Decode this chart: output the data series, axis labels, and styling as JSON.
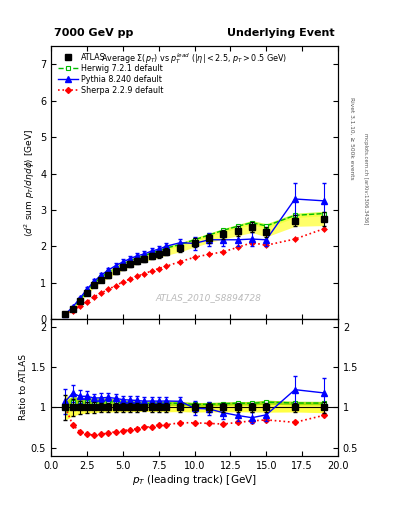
{
  "title_left": "7000 GeV pp",
  "title_right": "Underlying Event",
  "plot_title": "Average $\\Sigma(p_T)$ vs $p_T^{lead}$ ($|\\eta| < 2.5$, $p_T > 0.5$ GeV)",
  "ylabel_main": "$\\langle d^2$ sum $p_T/d\\eta d\\phi\\rangle$ [GeV]",
  "ylabel_ratio": "Ratio to ATLAS",
  "xlabel": "$p_T$ (leading track) [GeV]",
  "watermark": "ATLAS_2010_S8894728",
  "rivet_label": "Rivet 3.1.10, ≥ 500k events",
  "arxiv_label": "mcplots.cern.ch [arXiv:1306.3436]",
  "ylim_main": [
    0,
    7.5
  ],
  "ylim_ratio": [
    0.4,
    2.1
  ],
  "xlim": [
    0,
    20
  ],
  "atlas_x": [
    1.0,
    1.5,
    2.0,
    2.5,
    3.0,
    3.5,
    4.0,
    4.5,
    5.0,
    5.5,
    6.0,
    6.5,
    7.0,
    7.5,
    8.0,
    9.0,
    10.0,
    11.0,
    12.0,
    13.0,
    14.0,
    15.0,
    17.0,
    19.0
  ],
  "atlas_y": [
    0.13,
    0.28,
    0.5,
    0.72,
    0.93,
    1.08,
    1.2,
    1.32,
    1.43,
    1.52,
    1.6,
    1.66,
    1.73,
    1.78,
    1.85,
    1.95,
    2.1,
    2.22,
    2.33,
    2.42,
    2.52,
    2.4,
    2.7,
    2.75
  ],
  "atlas_yerr": [
    0.02,
    0.03,
    0.04,
    0.05,
    0.06,
    0.06,
    0.07,
    0.07,
    0.08,
    0.08,
    0.08,
    0.08,
    0.09,
    0.09,
    0.1,
    0.1,
    0.12,
    0.12,
    0.13,
    0.13,
    0.14,
    0.14,
    0.15,
    0.18
  ],
  "herwig_x": [
    1.0,
    1.5,
    2.0,
    2.5,
    3.0,
    3.5,
    4.0,
    4.5,
    5.0,
    5.5,
    6.0,
    6.5,
    7.0,
    7.5,
    8.0,
    9.0,
    10.0,
    11.0,
    12.0,
    13.0,
    14.0,
    15.0,
    17.0,
    19.0
  ],
  "herwig_y": [
    0.13,
    0.3,
    0.53,
    0.77,
    0.99,
    1.16,
    1.29,
    1.41,
    1.51,
    1.6,
    1.68,
    1.74,
    1.82,
    1.87,
    1.95,
    2.05,
    2.18,
    2.31,
    2.44,
    2.55,
    2.65,
    2.56,
    2.85,
    2.9
  ],
  "herwig_band_lo": [
    0.12,
    0.28,
    0.5,
    0.73,
    0.94,
    1.11,
    1.24,
    1.36,
    1.46,
    1.55,
    1.63,
    1.69,
    1.77,
    1.82,
    1.9,
    2.0,
    2.13,
    2.26,
    2.39,
    2.5,
    2.59,
    2.5,
    2.79,
    2.84
  ],
  "herwig_band_hi": [
    0.14,
    0.32,
    0.56,
    0.81,
    1.04,
    1.21,
    1.34,
    1.46,
    1.56,
    1.65,
    1.73,
    1.79,
    1.87,
    1.92,
    2.0,
    2.1,
    2.23,
    2.36,
    2.49,
    2.6,
    2.71,
    2.62,
    2.91,
    2.96
  ],
  "pythia_x": [
    1.0,
    1.5,
    2.0,
    2.5,
    3.0,
    3.5,
    4.0,
    4.5,
    5.0,
    5.5,
    6.0,
    6.5,
    7.0,
    7.5,
    8.0,
    9.0,
    10.0,
    11.0,
    12.0,
    13.0,
    14.0,
    15.0,
    17.0,
    19.0
  ],
  "pythia_y": [
    0.14,
    0.33,
    0.57,
    0.82,
    1.04,
    1.21,
    1.35,
    1.47,
    1.57,
    1.66,
    1.74,
    1.79,
    1.87,
    1.92,
    2.0,
    2.1,
    2.08,
    2.18,
    2.18,
    2.18,
    2.2,
    2.18,
    3.3,
    3.25
  ],
  "pythia_yerr": [
    0.02,
    0.03,
    0.04,
    0.05,
    0.05,
    0.06,
    0.06,
    0.07,
    0.07,
    0.07,
    0.08,
    0.08,
    0.09,
    0.09,
    0.09,
    0.1,
    0.18,
    0.18,
    0.18,
    0.18,
    0.18,
    0.18,
    0.45,
    0.5
  ],
  "sherpa_x": [
    1.0,
    1.5,
    2.0,
    2.5,
    3.0,
    3.5,
    4.0,
    4.5,
    5.0,
    5.5,
    6.0,
    6.5,
    7.0,
    7.5,
    8.0,
    9.0,
    10.0,
    11.0,
    12.0,
    13.0,
    14.0,
    15.0,
    17.0,
    19.0
  ],
  "sherpa_y": [
    0.13,
    0.22,
    0.35,
    0.48,
    0.61,
    0.72,
    0.82,
    0.92,
    1.02,
    1.1,
    1.18,
    1.25,
    1.32,
    1.39,
    1.45,
    1.58,
    1.7,
    1.78,
    1.85,
    1.97,
    2.1,
    2.03,
    2.2,
    2.48
  ],
  "sherpa_yerr": [
    0.01,
    0.02,
    0.02,
    0.03,
    0.03,
    0.04,
    0.04,
    0.05,
    0.05,
    0.05,
    0.05,
    0.05,
    0.06,
    0.06,
    0.06,
    0.07,
    0.07,
    0.07,
    0.08,
    0.08,
    0.09,
    0.09,
    0.12,
    0.14
  ],
  "atlas_color": "#000000",
  "herwig_color": "#00bb00",
  "pythia_color": "#0000ff",
  "sherpa_color": "#ff0000",
  "herwig_band_color": "#ccff44",
  "atlas_band_color": "#ffff44",
  "ratio_atlas_band_color": "#ffff44",
  "ratio_herwig_band_color": "#99dd00"
}
